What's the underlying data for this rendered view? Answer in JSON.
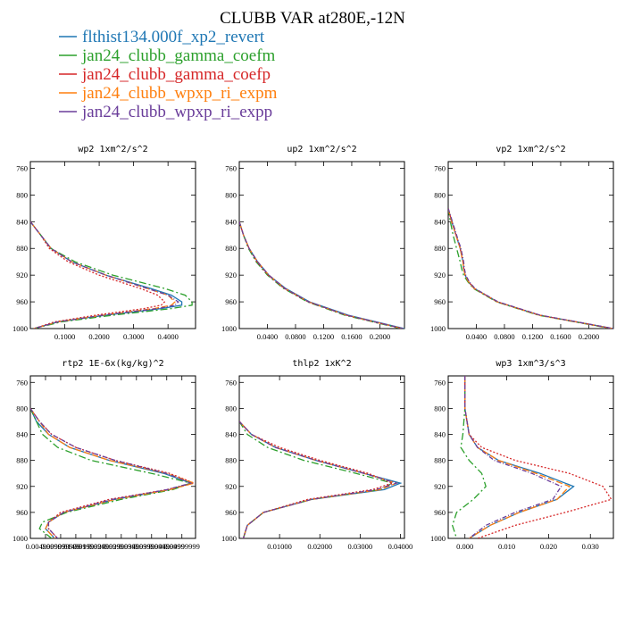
{
  "figure": {
    "title": "CLUBB VAR at280E,-12N"
  },
  "legend": [
    {
      "label": "flthist134.000f_xp2_revert",
      "color": "#1f77b4",
      "dash": "solid"
    },
    {
      "label": "jan24_clubb_gamma_coefm",
      "color": "#2ca02c",
      "dash": "dashdot"
    },
    {
      "label": "jan24_clubb_gamma_coefp",
      "color": "#d62728",
      "dash": "dot"
    },
    {
      "label": "jan24_clubb_wpxp_ri_expm",
      "color": "#ff7f0e",
      "dash": "dash"
    },
    {
      "label": "jan24_clubb_wpxp_ri_expp",
      "color": "#6a3d9a",
      "dash": "dashdot2"
    }
  ],
  "chart_data": [
    {
      "type": "line",
      "title": "wp2  1xm^2/s^2",
      "xlim": [
        0,
        0.48
      ],
      "ylim": [
        1000,
        750
      ],
      "x_ticks": [
        "0.1000",
        "0.2000",
        "0.3000",
        "0.4000"
      ],
      "x_tick_values": [
        0.1,
        0.2,
        0.3,
        0.4
      ],
      "y_ticks": [
        "760",
        "800",
        "840",
        "880",
        "920",
        "960",
        "1000"
      ],
      "y_tick_values": [
        760,
        800,
        840,
        880,
        920,
        960,
        1000
      ],
      "y": [
        840,
        860,
        880,
        900,
        920,
        940,
        950,
        960,
        965,
        970,
        980,
        990,
        1000
      ],
      "series": [
        {
          "values": [
            0.0,
            0.03,
            0.06,
            0.12,
            0.22,
            0.35,
            0.41,
            0.44,
            0.44,
            0.38,
            0.22,
            0.08,
            0.01
          ]
        },
        {
          "values": [
            0.0,
            0.03,
            0.06,
            0.13,
            0.24,
            0.39,
            0.45,
            0.47,
            0.47,
            0.41,
            0.24,
            0.09,
            0.01
          ]
        },
        {
          "values": [
            0.0,
            0.03,
            0.055,
            0.11,
            0.2,
            0.32,
            0.37,
            0.39,
            0.38,
            0.33,
            0.19,
            0.07,
            0.01
          ]
        },
        {
          "values": [
            0.0,
            0.03,
            0.06,
            0.12,
            0.22,
            0.34,
            0.4,
            0.42,
            0.41,
            0.36,
            0.21,
            0.08,
            0.01
          ]
        },
        {
          "values": [
            0.0,
            0.03,
            0.06,
            0.12,
            0.22,
            0.34,
            0.4,
            0.43,
            0.42,
            0.37,
            0.21,
            0.08,
            0.01
          ]
        }
      ]
    },
    {
      "type": "line",
      "title": "up2  1xm^2/s^2",
      "xlim": [
        0,
        0.235
      ],
      "ylim": [
        1000,
        750
      ],
      "x_ticks": [
        "0.0400",
        "0.0800",
        "0.1200",
        "0.1600",
        "0.2000"
      ],
      "x_tick_values": [
        0.04,
        0.08,
        0.12,
        0.16,
        0.2
      ],
      "y_ticks": [
        "760",
        "800",
        "840",
        "880",
        "920",
        "960",
        "1000"
      ],
      "y_tick_values": [
        760,
        800,
        840,
        880,
        920,
        960,
        1000
      ],
      "y": [
        840,
        860,
        880,
        900,
        920,
        940,
        960,
        980,
        1000
      ],
      "series": [
        {
          "values": [
            0.0,
            0.006,
            0.014,
            0.026,
            0.042,
            0.066,
            0.1,
            0.155,
            0.235
          ]
        },
        {
          "values": [
            0.0,
            0.006,
            0.013,
            0.024,
            0.04,
            0.063,
            0.097,
            0.15,
            0.23
          ]
        },
        {
          "values": [
            0.0,
            0.006,
            0.014,
            0.025,
            0.041,
            0.064,
            0.098,
            0.152,
            0.232
          ]
        },
        {
          "values": [
            0.0,
            0.006,
            0.014,
            0.026,
            0.042,
            0.065,
            0.099,
            0.153,
            0.233
          ]
        },
        {
          "values": [
            0.0,
            0.006,
            0.014,
            0.026,
            0.042,
            0.065,
            0.099,
            0.153,
            0.233
          ]
        }
      ]
    },
    {
      "type": "line",
      "title": "vp2  1xm^2/s^2",
      "xlim": [
        0,
        0.235
      ],
      "ylim": [
        1000,
        750
      ],
      "x_ticks": [
        "0.0400",
        "0.0800",
        "0.1200",
        "0.1600",
        "0.2000"
      ],
      "x_tick_values": [
        0.04,
        0.08,
        0.12,
        0.16,
        0.2
      ],
      "y_ticks": [
        "760",
        "800",
        "840",
        "880",
        "920",
        "960",
        "1000"
      ],
      "y_tick_values": [
        760,
        800,
        840,
        880,
        920,
        960,
        1000
      ],
      "y": [
        820,
        840,
        860,
        880,
        900,
        910,
        920,
        930,
        940,
        960,
        980,
        1000
      ],
      "series": [
        {
          "values": [
            0.0,
            0.005,
            0.011,
            0.017,
            0.021,
            0.022,
            0.024,
            0.029,
            0.037,
            0.07,
            0.13,
            0.235
          ]
        },
        {
          "values": [
            0.0,
            0.003,
            0.007,
            0.012,
            0.017,
            0.019,
            0.022,
            0.028,
            0.036,
            0.069,
            0.128,
            0.232
          ]
        },
        {
          "values": [
            0.0,
            0.005,
            0.011,
            0.017,
            0.021,
            0.022,
            0.024,
            0.029,
            0.037,
            0.07,
            0.13,
            0.234
          ]
        },
        {
          "values": [
            0.0,
            0.005,
            0.011,
            0.017,
            0.021,
            0.022,
            0.024,
            0.029,
            0.037,
            0.07,
            0.13,
            0.234
          ]
        },
        {
          "values": [
            0.0,
            0.006,
            0.012,
            0.018,
            0.022,
            0.023,
            0.025,
            0.03,
            0.038,
            0.071,
            0.131,
            0.235
          ]
        }
      ]
    },
    {
      "type": "line",
      "title": "rtp2  1E-6x(kg/kg)^2",
      "xlim": [
        0,
        0.0545
      ],
      "ylim": [
        1000,
        750
      ],
      "x_ticks": [
        "0.004999999",
        "0.009999999",
        "0.01499999",
        "0.01999999",
        "0.02499999",
        "0.02999999",
        "0.03499999",
        "0.03999999",
        "0.04499999",
        "0.04999999"
      ],
      "x_tick_values": [
        0.005,
        0.01,
        0.015,
        0.02,
        0.025,
        0.03,
        0.035,
        0.04,
        0.045,
        0.05
      ],
      "y_ticks": [
        "760",
        "800",
        "840",
        "880",
        "920",
        "960",
        "1000"
      ],
      "y_tick_values": [
        760,
        800,
        840,
        880,
        920,
        960,
        1000
      ],
      "y": [
        800,
        820,
        840,
        860,
        880,
        900,
        915,
        925,
        940,
        960,
        975,
        985,
        1000
      ],
      "series": [
        {
          "values": [
            0.0,
            0.002,
            0.006,
            0.013,
            0.026,
            0.044,
            0.053,
            0.046,
            0.028,
            0.011,
            0.006,
            0.005,
            0.008
          ]
        },
        {
          "values": [
            0.0,
            0.002,
            0.004,
            0.009,
            0.02,
            0.04,
            0.053,
            0.047,
            0.03,
            0.012,
            0.004,
            0.003,
            0.007
          ]
        },
        {
          "values": [
            0.0,
            0.003,
            0.007,
            0.015,
            0.028,
            0.046,
            0.054,
            0.045,
            0.026,
            0.01,
            0.006,
            0.006,
            0.009
          ]
        },
        {
          "values": [
            0.0,
            0.003,
            0.006,
            0.013,
            0.026,
            0.045,
            0.054,
            0.046,
            0.028,
            0.011,
            0.006,
            0.005,
            0.008
          ]
        },
        {
          "values": [
            0.0,
            0.003,
            0.007,
            0.015,
            0.028,
            0.045,
            0.053,
            0.045,
            0.027,
            0.011,
            0.006,
            0.006,
            0.009
          ]
        }
      ]
    },
    {
      "type": "line",
      "title": "thlp2  1xK^2",
      "xlim": [
        0,
        0.041
      ],
      "ylim": [
        1000,
        750
      ],
      "x_ticks": [
        "0.01000",
        "0.02000",
        "0.03000",
        "0.04000"
      ],
      "x_tick_values": [
        0.01,
        0.02,
        0.03,
        0.04
      ],
      "y_ticks": [
        "760",
        "800",
        "840",
        "880",
        "920",
        "960",
        "1000"
      ],
      "y_tick_values": [
        760,
        800,
        840,
        880,
        920,
        960,
        1000
      ],
      "y": [
        820,
        840,
        860,
        880,
        900,
        915,
        925,
        940,
        960,
        980,
        1000
      ],
      "series": [
        {
          "values": [
            0.0,
            0.003,
            0.009,
            0.019,
            0.031,
            0.04,
            0.036,
            0.018,
            0.006,
            0.002,
            0.001
          ]
        },
        {
          "values": [
            0.0,
            0.002,
            0.007,
            0.016,
            0.029,
            0.038,
            0.035,
            0.018,
            0.006,
            0.002,
            0.001
          ]
        },
        {
          "values": [
            0.0,
            0.003,
            0.01,
            0.02,
            0.032,
            0.038,
            0.033,
            0.017,
            0.006,
            0.002,
            0.001
          ]
        },
        {
          "values": [
            0.0,
            0.003,
            0.009,
            0.019,
            0.031,
            0.039,
            0.035,
            0.018,
            0.006,
            0.002,
            0.001
          ]
        },
        {
          "values": [
            0.0,
            0.003,
            0.009,
            0.019,
            0.031,
            0.039,
            0.034,
            0.018,
            0.006,
            0.002,
            0.001
          ]
        }
      ]
    },
    {
      "type": "line",
      "title": "wp3  1xm^3/s^3",
      "xlim": [
        -0.004,
        0.0355
      ],
      "ylim": [
        1000,
        750
      ],
      "x_ticks": [
        "0.000",
        "0.010",
        "0.020",
        "0.030"
      ],
      "x_tick_values": [
        0.0,
        0.01,
        0.02,
        0.03
      ],
      "y_ticks": [
        "760",
        "800",
        "840",
        "880",
        "920",
        "960",
        "1000"
      ],
      "y_tick_values": [
        760,
        800,
        840,
        880,
        920,
        960,
        1000
      ],
      "y": [
        750,
        800,
        840,
        860,
        880,
        900,
        920,
        940,
        960,
        980,
        1000
      ],
      "series": [
        {
          "values": [
            0.0,
            0.0,
            0.001,
            0.003,
            0.008,
            0.018,
            0.026,
            0.022,
            0.013,
            0.006,
            0.001
          ]
        },
        {
          "values": [
            0.0,
            0.0,
            -0.0005,
            -0.001,
            0.001,
            0.004,
            0.005,
            0.002,
            -0.002,
            -0.003,
            -0.002
          ]
        },
        {
          "values": [
            0.0,
            0.0,
            0.001,
            0.004,
            0.012,
            0.025,
            0.033,
            0.035,
            0.024,
            0.012,
            0.003
          ]
        },
        {
          "values": [
            0.0,
            0.0,
            0.001,
            0.003,
            0.008,
            0.017,
            0.025,
            0.022,
            0.013,
            0.006,
            0.001
          ]
        },
        {
          "values": [
            0.0,
            0.0,
            0.001,
            0.003,
            0.007,
            0.016,
            0.023,
            0.021,
            0.012,
            0.005,
            0.001
          ]
        }
      ]
    }
  ]
}
